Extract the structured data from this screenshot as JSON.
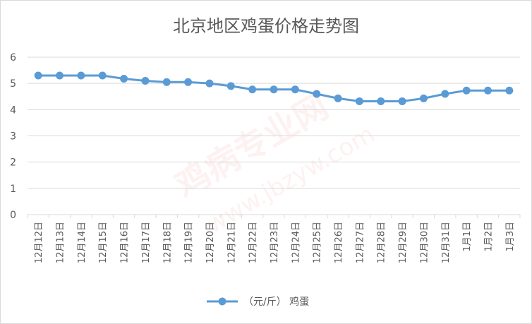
{
  "chart_data": {
    "type": "line",
    "title": "北京地区鸡蛋价格走势图",
    "categories": [
      "12月12日",
      "12月13日",
      "12月14日",
      "12月15日",
      "12月16日",
      "12月17日",
      "12月18日",
      "12月19日",
      "12月20日",
      "12月21日",
      "12月22日",
      "12月23日",
      "12月24日",
      "12月25日",
      "12月26日",
      "12月27日",
      "12月28日",
      "12月29日",
      "12月30日",
      "12月31日",
      "1月1日",
      "1月2日",
      "1月3日"
    ],
    "series": [
      {
        "name": "（元/斤） 鸡蛋",
        "color": "#5b9bd5",
        "values": [
          5.3,
          5.3,
          5.3,
          5.3,
          5.18,
          5.1,
          5.05,
          5.05,
          5.0,
          4.9,
          4.77,
          4.77,
          4.77,
          4.6,
          4.43,
          4.32,
          4.32,
          4.32,
          4.43,
          4.6,
          4.73,
          4.73,
          4.73
        ]
      }
    ],
    "ylim": [
      0,
      6
    ],
    "yticks": [
      "0",
      "1",
      "2",
      "3",
      "4",
      "5",
      "6"
    ],
    "grid": true,
    "legend": "bottom"
  },
  "watermark": {
    "text": "鸡病专业网",
    "url": "www.jbzyw.com",
    "color": "#e64646"
  }
}
